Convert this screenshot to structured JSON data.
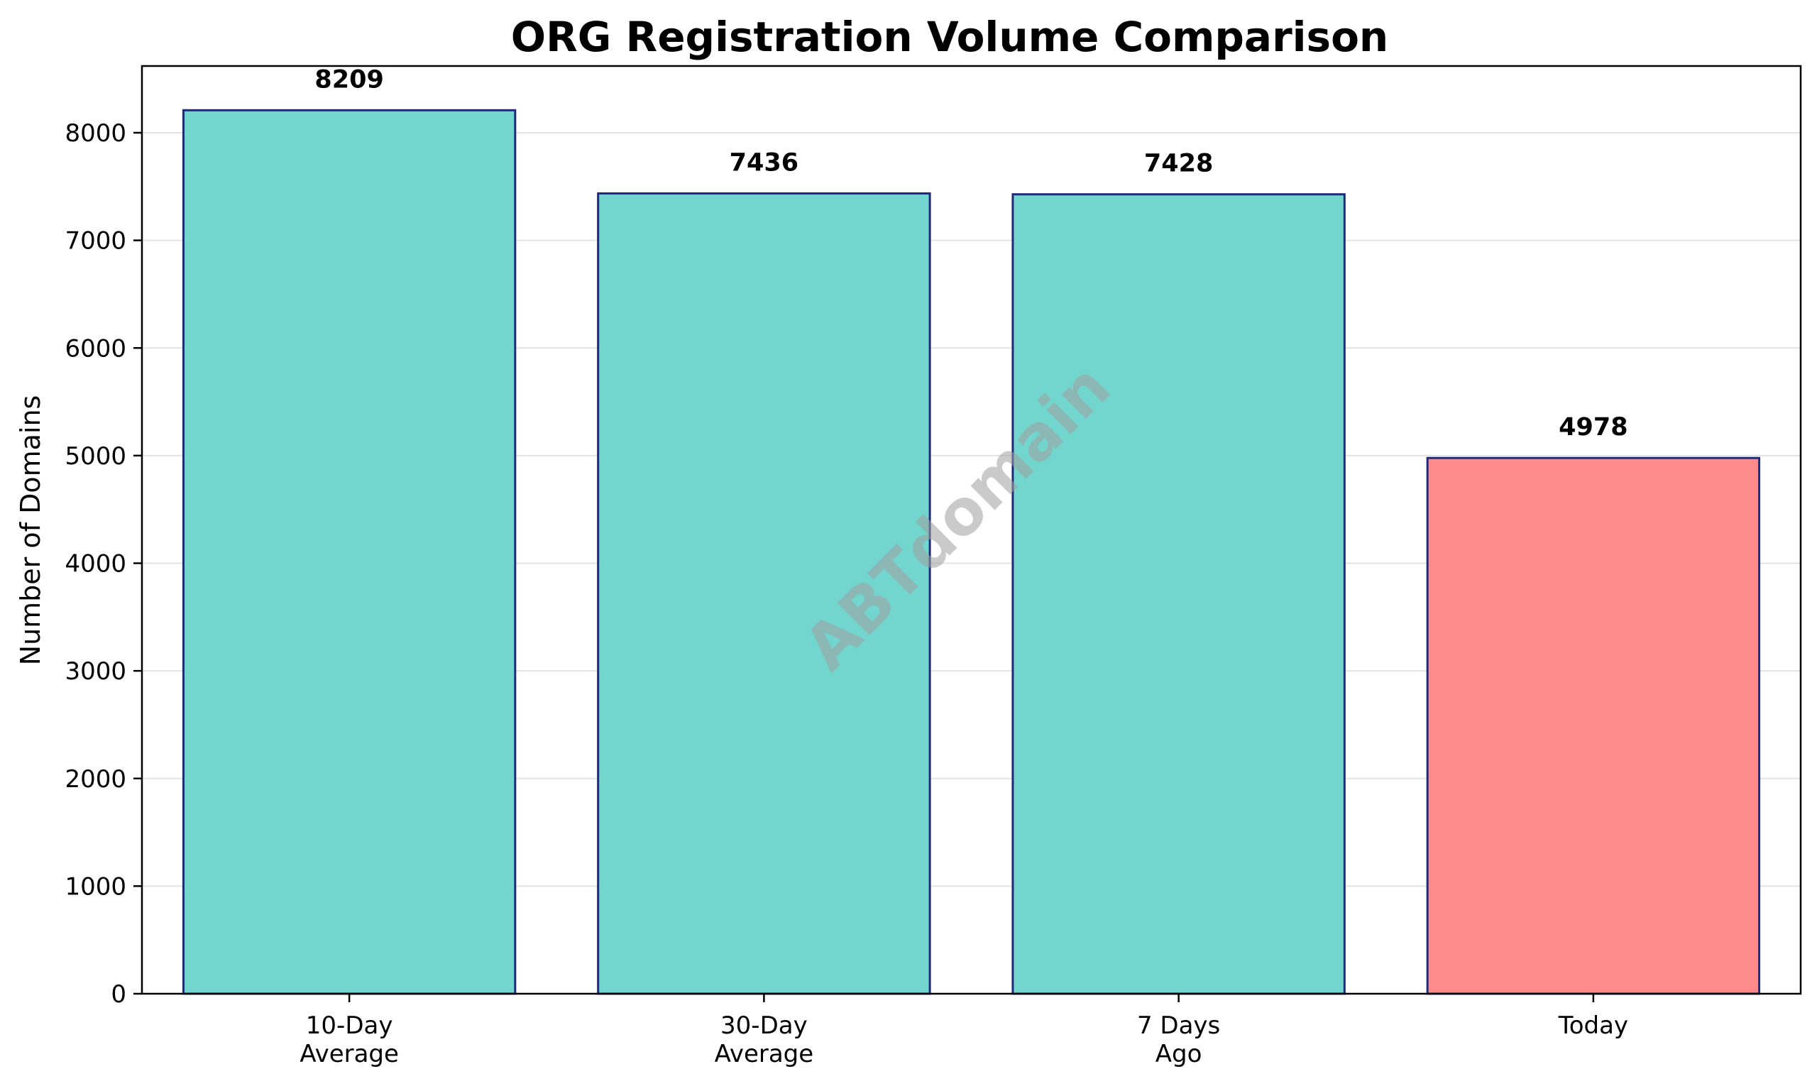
{
  "chart_data": {
    "type": "bar",
    "title": "ORG Registration Volume Comparison",
    "xlabel": "",
    "ylabel": "Number of Domains",
    "categories": [
      [
        "10-Day",
        "Average"
      ],
      [
        "30-Day",
        "Average"
      ],
      [
        "7 Days",
        "Ago"
      ],
      [
        "Today"
      ]
    ],
    "values": [
      8209,
      7436,
      7428,
      4978
    ],
    "value_labels": [
      "8209",
      "7436",
      "7428",
      "4978"
    ],
    "ylim": [
      0,
      8620
    ],
    "yticks": [
      0,
      1000,
      2000,
      3000,
      4000,
      5000,
      6000,
      7000,
      8000
    ],
    "grid": "y",
    "legend": "none",
    "colors": {
      "bars": [
        "#72d6cf",
        "#72d6cf",
        "#72d6cf",
        "#ff8a8a"
      ],
      "bar_edge": "#1f2a7a",
      "grid": "#e3e3e3",
      "axis": "#000000"
    },
    "watermark": "ABTdomain"
  }
}
